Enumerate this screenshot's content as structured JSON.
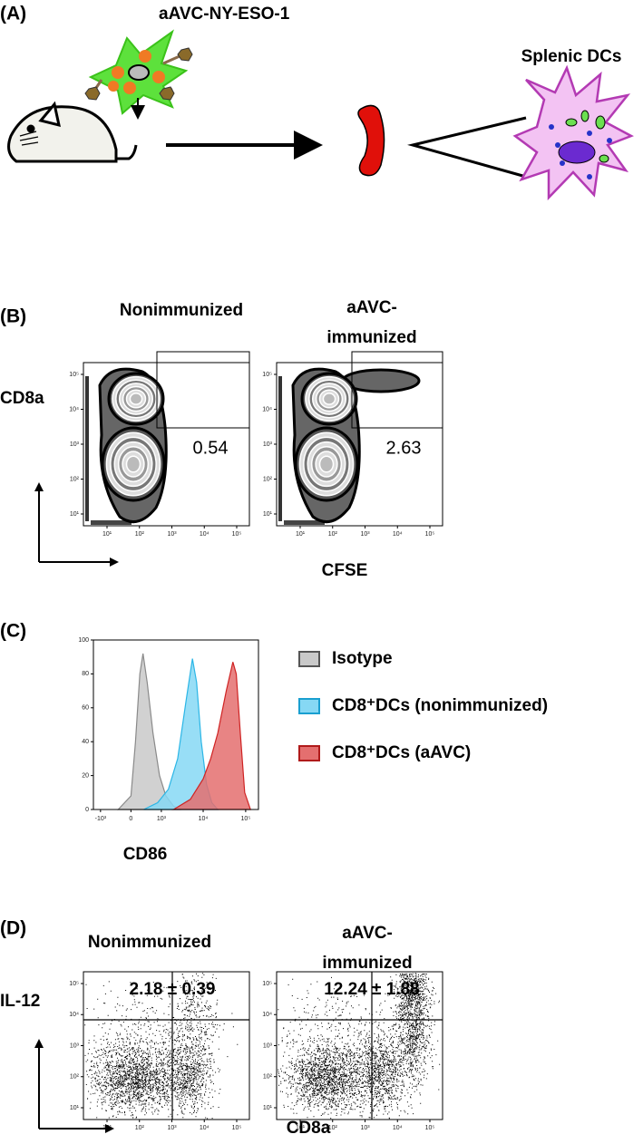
{
  "panel_a": {
    "label": "(A)",
    "vaccine": "aAVC-NY-ESO-1",
    "target": "Splenic DCs"
  },
  "panel_b": {
    "label": "(B)",
    "y_label": "CD8a",
    "x_label": "CFSE",
    "ticks": [
      "10¹",
      "10²",
      "10³",
      "10⁴",
      "10⁵"
    ],
    "plots": [
      {
        "title": [
          "Nonimmunized"
        ],
        "gate_value": 0.54
      },
      {
        "title": [
          "aAVC-",
          "immunized"
        ],
        "gate_value": 2.63
      }
    ]
  },
  "panel_c": {
    "label": "(C)",
    "chart_data": {
      "type": "area",
      "x_label": "CD86",
      "xlim": [
        -1500,
        200000
      ],
      "xticks": [
        {
          "value": -1000,
          "label": "-10³"
        },
        0,
        {
          "value": 1000,
          "label": "10³"
        },
        {
          "value": 10000,
          "label": "10⁴"
        },
        {
          "value": 100000,
          "label": "10⁵"
        }
      ],
      "ylim": [
        0,
        100
      ],
      "yticks": [
        0,
        20,
        40,
        60,
        80,
        100
      ],
      "series": [
        {
          "name": "Isotype",
          "color": "#c9c9c9",
          "x": [
            -300,
            0,
            100,
            200,
            280,
            400,
            600,
            900,
            1300,
            2000,
            3000
          ],
          "values": [
            0,
            8,
            40,
            80,
            92,
            75,
            45,
            20,
            8,
            2,
            0
          ]
        },
        {
          "name": "CD8⁺DCs (nonimmunized)",
          "color": "#86d8f4",
          "x": [
            300,
            800,
            1500,
            2500,
            4000,
            5600,
            7000,
            9000,
            12000,
            16000,
            22000
          ],
          "values": [
            0,
            4,
            12,
            30,
            65,
            89,
            75,
            40,
            15,
            4,
            0
          ]
        },
        {
          "name": "CD8⁺DCs (aAVC)",
          "color": "#e46f6f",
          "x": [
            2000,
            5000,
            10000,
            15000,
            22000,
            35000,
            50000,
            60000,
            75000,
            95000,
            130000
          ],
          "values": [
            0,
            6,
            18,
            30,
            45,
            70,
            87,
            80,
            45,
            10,
            0
          ]
        }
      ]
    }
  },
  "panel_d": {
    "label": "(D)",
    "y_label": "IL-12",
    "x_label": "CD8a",
    "ticks": [
      "10¹",
      "10²",
      "10³",
      "10⁴",
      "10⁵"
    ],
    "plots": [
      {
        "title": [
          "Nonimmunized"
        ],
        "quadrant_value": "2.18 ± 0.39"
      },
      {
        "title": [
          "aAVC-",
          "immunized"
        ],
        "quadrant_value": "12.24 ± 1.88"
      }
    ]
  }
}
